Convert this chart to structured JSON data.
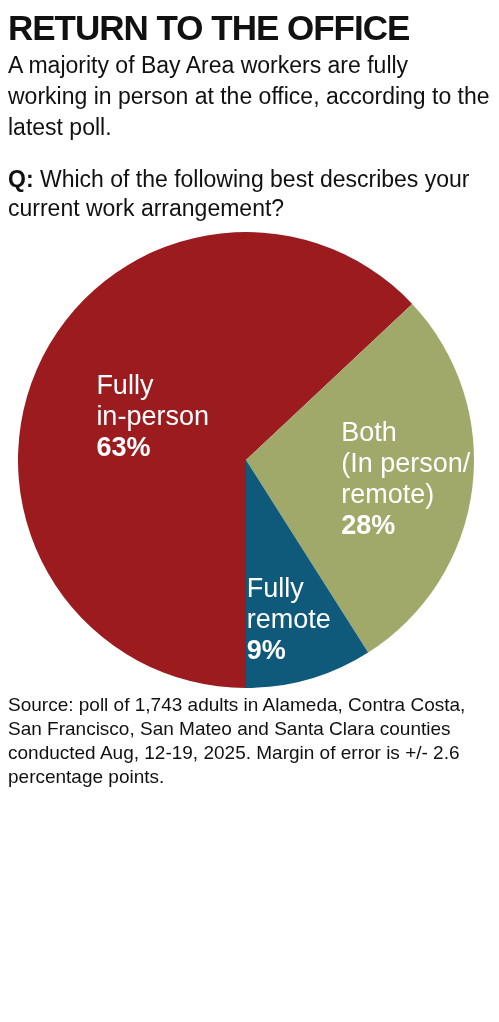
{
  "chart_data": {
    "type": "pie",
    "title": "RETURN TO THE OFFICE",
    "subtitle": "A majority of Bay Area workers are fully working in person at the office, according to the latest poll.",
    "annotations": [
      "Q: Which of the following best describes your current work arrangement?",
      "Source: poll of 1,743 adults in Alameda, Contra Costa, San Francisco, San Mateo and Santa Clara counties conducted Aug, 12-19, 2025. Margin of error is +/- 2.6 percentage points."
    ],
    "categories": [
      "Fully\nin-person",
      "Both\n(In person/\nremote)",
      "Fully\nremote"
    ],
    "values": [
      63,
      28,
      9
    ],
    "value_labels": [
      "63%",
      "28%",
      "9%"
    ],
    "colors": [
      "#9b1b1f",
      "#a0a86a",
      "#0f5a7a"
    ]
  }
}
